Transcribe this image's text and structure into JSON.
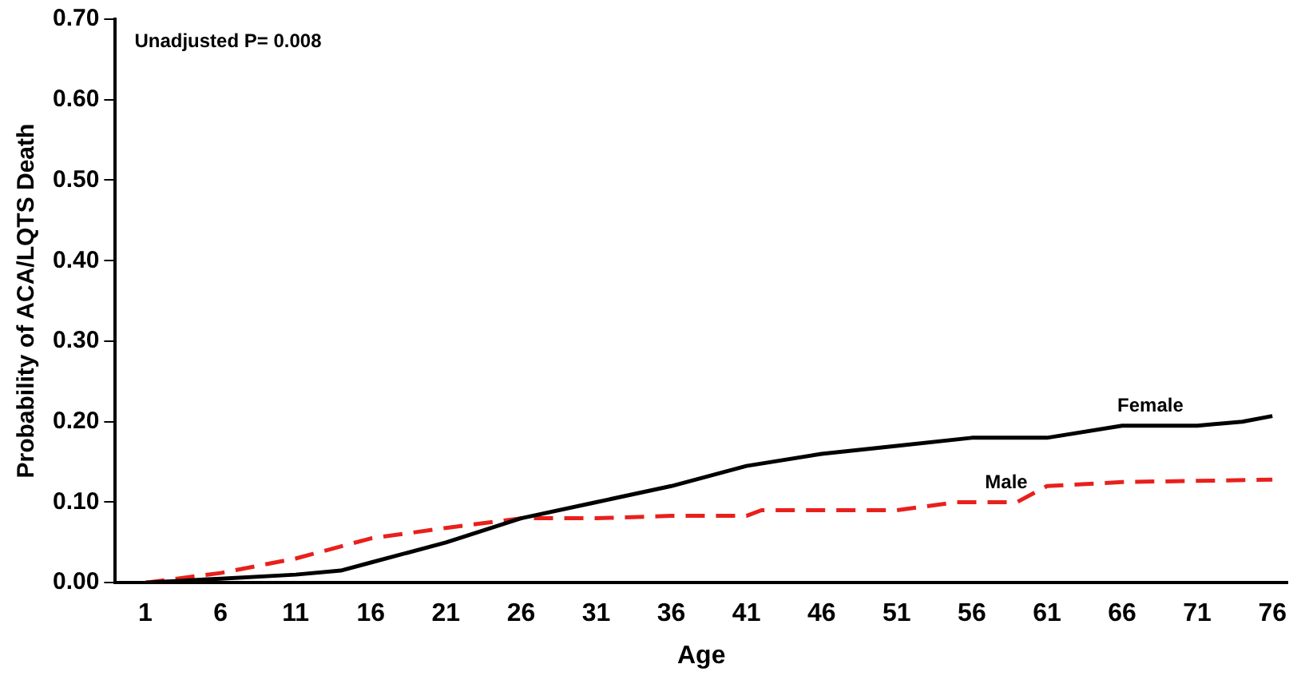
{
  "chart_data": {
    "type": "line",
    "xlabel": "Age",
    "ylabel": "Probability of ACA/LQTS Death",
    "annotations": [
      "Unadjusted P= 0.008"
    ],
    "xlim": [
      -1,
      77
    ],
    "xticks": [
      1,
      6,
      11,
      16,
      21,
      26,
      31,
      36,
      41,
      46,
      51,
      56,
      61,
      66,
      71,
      76
    ],
    "ylim": [
      0,
      0.7
    ],
    "yticks": [
      {
        "value": 0,
        "label": "0.00"
      },
      {
        "value": 0.1,
        "label": "0.10"
      },
      {
        "value": 0.2,
        "label": "0.20"
      },
      {
        "value": 0.3,
        "label": "0.30"
      },
      {
        "value": 0.4,
        "label": "0.40"
      },
      {
        "value": 0.5,
        "label": "0.50"
      },
      {
        "value": 0.6,
        "label": "0.60"
      },
      {
        "value": 0.7,
        "label": "0.70"
      }
    ],
    "grid": false,
    "legend": false,
    "marker": "none",
    "series": [
      {
        "name": "Female",
        "color": "#000000",
        "line_style": "solid",
        "x": [
          1,
          6,
          11,
          14,
          16,
          21,
          26,
          31,
          36,
          41,
          46,
          51,
          56,
          61,
          66,
          71,
          74,
          76
        ],
        "values": [
          0,
          0.005,
          0.01,
          0.015,
          0.025,
          0.05,
          0.08,
          0.1,
          0.12,
          0.145,
          0.16,
          0.17,
          0.18,
          0.18,
          0.195,
          0.195,
          0.2,
          0.207
        ]
      },
      {
        "name": "Male",
        "color": "#e8201c",
        "line_style": "dashed",
        "x": [
          1,
          6,
          11,
          16,
          21,
          26,
          31,
          36,
          41,
          42,
          51,
          55,
          59,
          61,
          66,
          76
        ],
        "values": [
          0,
          0.012,
          0.03,
          0.055,
          0.068,
          0.08,
          0.08,
          0.083,
          0.083,
          0.09,
          0.09,
          0.1,
          0.1,
          0.12,
          0.125,
          0.128
        ]
      }
    ]
  }
}
